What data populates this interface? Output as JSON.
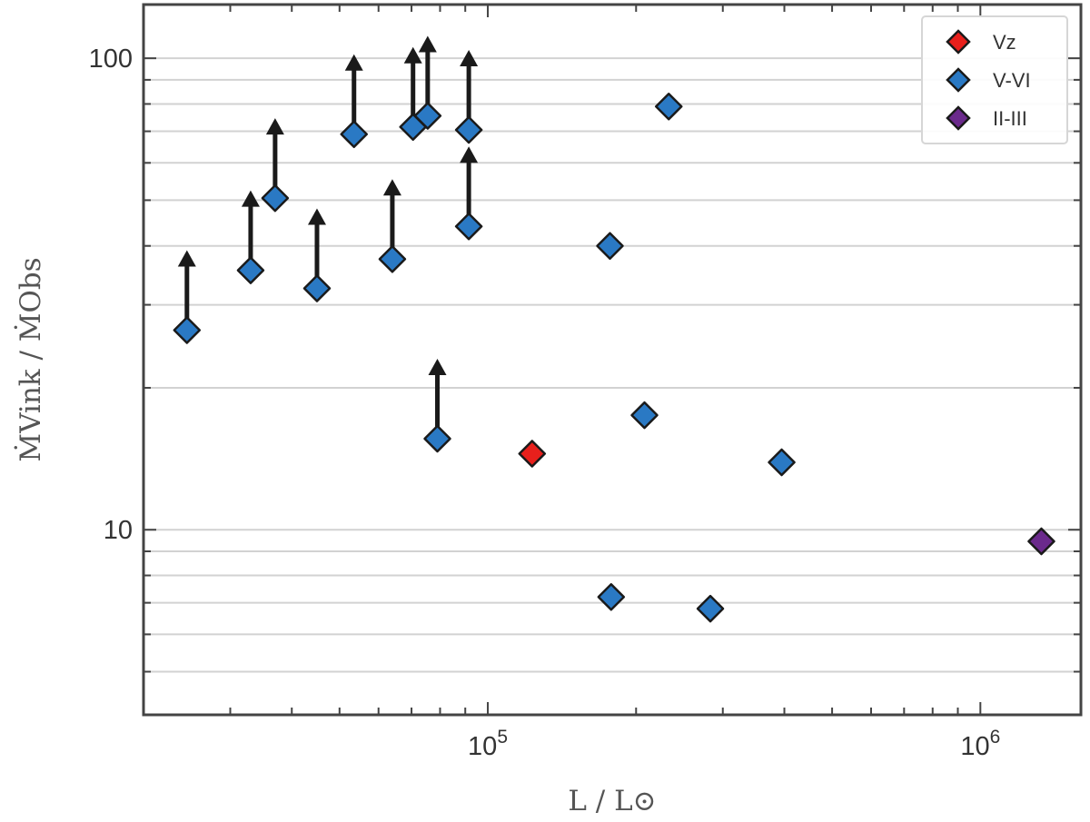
{
  "chart_data": {
    "type": "scatter",
    "xscale": "log",
    "yscale": "log",
    "xlim": [
      20000,
      1600000
    ],
    "ylim": [
      4.05,
      130
    ],
    "grid": "y-major-and-minor",
    "xlabel": "L / L⊙",
    "ylabel": "ṀVink / ṀObs",
    "xticks": [
      {
        "value": 100000,
        "base": "10",
        "exp": "5"
      },
      {
        "value": 1000000,
        "base": "10",
        "exp": "6"
      }
    ],
    "yticks": [
      {
        "value": 10,
        "label": "10"
      },
      {
        "value": 100,
        "label": "100"
      }
    ],
    "legend": {
      "position": "top-right"
    },
    "series": [
      {
        "name": "Vz",
        "color": "#e8201c",
        "points": [
          {
            "x": 123000,
            "y": 14.5,
            "lower_limit": false
          }
        ]
      },
      {
        "name": "V-VI",
        "color": "#2a79c4",
        "points": [
          {
            "x": 24500,
            "y": 26.5,
            "lower_limit": true
          },
          {
            "x": 33000,
            "y": 35.5,
            "lower_limit": true
          },
          {
            "x": 37000,
            "y": 50.5,
            "lower_limit": true
          },
          {
            "x": 45000,
            "y": 32.5,
            "lower_limit": true
          },
          {
            "x": 53500,
            "y": 69.0,
            "lower_limit": true
          },
          {
            "x": 64000,
            "y": 37.5,
            "lower_limit": true
          },
          {
            "x": 70500,
            "y": 71.5,
            "lower_limit": true
          },
          {
            "x": 75500,
            "y": 75.5,
            "lower_limit": true
          },
          {
            "x": 79000,
            "y": 15.6,
            "lower_limit": true
          },
          {
            "x": 91500,
            "y": 70.5,
            "lower_limit": true
          },
          {
            "x": 91500,
            "y": 44.0,
            "lower_limit": true
          },
          {
            "x": 177000,
            "y": 40.0,
            "lower_limit": false
          },
          {
            "x": 233000,
            "y": 79.0,
            "lower_limit": false
          },
          {
            "x": 208000,
            "y": 17.5,
            "lower_limit": false
          },
          {
            "x": 395000,
            "y": 13.9,
            "lower_limit": false
          },
          {
            "x": 178000,
            "y": 7.2,
            "lower_limit": false
          },
          {
            "x": 283000,
            "y": 6.8,
            "lower_limit": false
          }
        ]
      },
      {
        "name": "II-III",
        "color": "#6b2a8c",
        "points": [
          {
            "x": 1330000,
            "y": 9.45,
            "lower_limit": false
          }
        ]
      }
    ]
  }
}
